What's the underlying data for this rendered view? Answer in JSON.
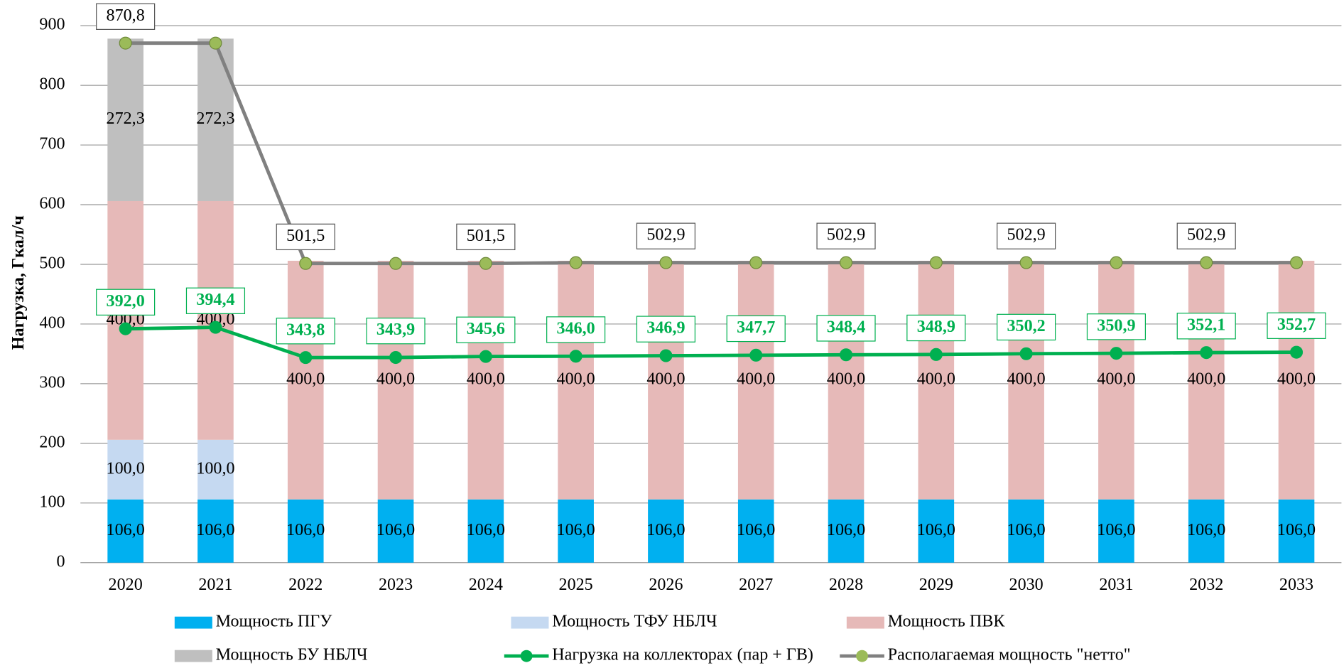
{
  "chart_data": {
    "type": "bar",
    "y_label": "Нагрузка, Гкал/ч",
    "categories": [
      "2020",
      "2021",
      "2022",
      "2023",
      "2024",
      "2025",
      "2026",
      "2027",
      "2028",
      "2029",
      "2030",
      "2031",
      "2032",
      "2033"
    ],
    "ylim": [
      0,
      900
    ],
    "yticks": [
      0,
      100,
      200,
      300,
      400,
      500,
      600,
      700,
      800,
      900
    ],
    "grid": true,
    "series": [
      {
        "name": "Мощность ПГУ",
        "type": "bar",
        "color": "#00b0f0",
        "values": [
          106,
          106,
          106,
          106,
          106,
          106,
          106,
          106,
          106,
          106,
          106,
          106,
          106,
          106
        ],
        "value_labels": [
          "106,0",
          "106,0",
          "106,0",
          "106,0",
          "106,0",
          "106,0",
          "106,0",
          "106,0",
          "106,0",
          "106,0",
          "106,0",
          "106,0",
          "106,0",
          "106,0"
        ]
      },
      {
        "name": "Мощность ТФУ НБЛЧ",
        "type": "bar",
        "color": "#c5d9f1",
        "values": [
          100,
          100,
          0,
          0,
          0,
          0,
          0,
          0,
          0,
          0,
          0,
          0,
          0,
          0
        ],
        "value_labels": [
          "100,0",
          "100,0",
          null,
          null,
          null,
          null,
          null,
          null,
          null,
          null,
          null,
          null,
          null,
          null
        ]
      },
      {
        "name": "Мощность ПВК",
        "type": "bar",
        "color": "#e6b9b8",
        "values": [
          400,
          400,
          400,
          400,
          400,
          400,
          400,
          400,
          400,
          400,
          400,
          400,
          400,
          400
        ],
        "value_labels": [
          "400,0",
          "400,0",
          "400,0",
          "400,0",
          "400,0",
          "400,0",
          "400,0",
          "400,0",
          "400,0",
          "400,0",
          "400,0",
          "400,0",
          "400,0",
          "400,0"
        ]
      },
      {
        "name": "Мощность БУ НБЛЧ",
        "type": "bar",
        "color": "#bfbfbf",
        "values": [
          272.3,
          272.3,
          0,
          0,
          0,
          0,
          0,
          0,
          0,
          0,
          0,
          0,
          0,
          0
        ],
        "value_labels": [
          "272,3",
          "272,3",
          null,
          null,
          null,
          null,
          null,
          null,
          null,
          null,
          null,
          null,
          null,
          null
        ]
      },
      {
        "name": "Нагрузка на коллекторах (пар + ГВ)",
        "type": "line",
        "color": "#00b050",
        "marker_color": "#00b050",
        "values": [
          392.0,
          394.4,
          343.8,
          343.9,
          345.6,
          346.0,
          346.9,
          347.7,
          348.4,
          348.9,
          350.2,
          350.9,
          352.1,
          352.7
        ],
        "value_labels": [
          "392,0",
          "394,4",
          "343,8",
          "343,9",
          "345,6",
          "346,0",
          "346,9",
          "347,7",
          "348,4",
          "348,9",
          "350,2",
          "350,9",
          "352,1",
          "352,7"
        ]
      },
      {
        "name": "Располагаемая мощность \"нетто\"",
        "type": "line",
        "color": "#808080",
        "marker_color": "#9bbb59",
        "values": [
          870.8,
          870.8,
          501.5,
          501.5,
          501.5,
          502.9,
          502.9,
          502.9,
          502.9,
          502.9,
          502.9,
          502.9,
          502.9,
          502.9
        ],
        "value_labels": [
          "870,8",
          null,
          "501,5",
          null,
          "501,5",
          null,
          "502,9",
          null,
          "502,9",
          null,
          "502,9",
          null,
          "502,9",
          null
        ]
      }
    ]
  }
}
